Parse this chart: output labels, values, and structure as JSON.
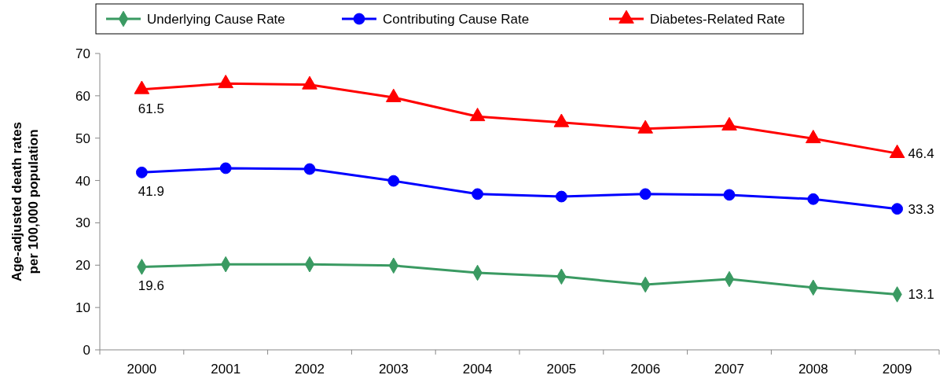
{
  "chart_data": {
    "type": "line",
    "ylabel": "Age-adjusted death rates per 100,000 population",
    "categories": [
      "2000",
      "2001",
      "2002",
      "2003",
      "2004",
      "2005",
      "2006",
      "2007",
      "2008",
      "2009"
    ],
    "ylim": [
      0,
      70
    ],
    "yticks": [
      0,
      10,
      20,
      30,
      40,
      50,
      60,
      70
    ],
    "grid": false,
    "legend": "top",
    "series": [
      {
        "name": "Underlying Cause Rate",
        "color": "#3a9a62",
        "marker": "diamond",
        "values": [
          19.6,
          20.2,
          20.2,
          19.9,
          18.2,
          17.3,
          15.4,
          16.7,
          14.7,
          13.1
        ],
        "value_labels": [
          "19.6",
          null,
          null,
          null,
          null,
          null,
          null,
          null,
          null,
          "13.1"
        ]
      },
      {
        "name": "Contributing Cause Rate",
        "color": "#0000ff",
        "marker": "circle",
        "values": [
          41.9,
          42.9,
          42.7,
          39.9,
          36.8,
          36.2,
          36.8,
          36.6,
          35.6,
          33.3
        ],
        "value_labels": [
          "41.9",
          null,
          null,
          null,
          null,
          null,
          null,
          null,
          null,
          "33.3"
        ]
      },
      {
        "name": "Diabetes-Related Rate",
        "color": "#ff0000",
        "marker": "triangle",
        "values": [
          61.5,
          62.9,
          62.6,
          59.6,
          55.1,
          53.7,
          52.2,
          52.9,
          49.9,
          46.4
        ],
        "value_labels": [
          "61.5",
          null,
          null,
          null,
          null,
          null,
          null,
          null,
          null,
          "46.4"
        ]
      }
    ]
  }
}
